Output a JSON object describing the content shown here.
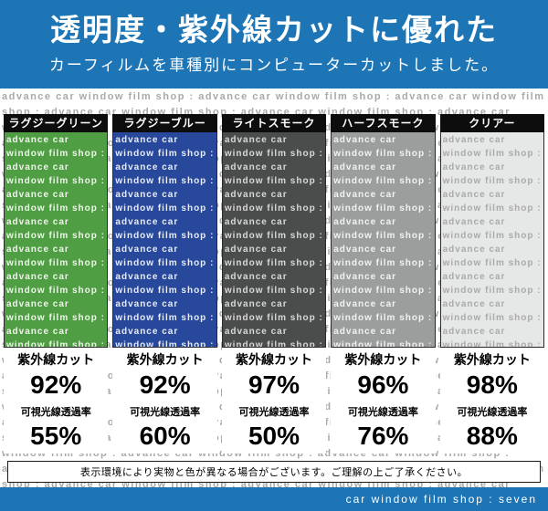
{
  "banner": {
    "title": "透明度・紫外線カットに優れた",
    "subtitle": "カーフィルムを車種別にコンピューターカットしました。"
  },
  "watermark": "advance car window film shop :",
  "labels": {
    "uv": "紫外線カット",
    "vlt": "可視光線透過率"
  },
  "films": [
    {
      "name": "ラグジーグリーン",
      "film_color": "#4f9e43",
      "text_color": "#eef5ea",
      "uv_cut": "92%",
      "vlt": "55%"
    },
    {
      "name": "ラグジーブルー",
      "film_color": "#27489b",
      "text_color": "#e8ecf7",
      "uv_cut": "92%",
      "vlt": "60%"
    },
    {
      "name": "ライトスモーク",
      "film_color": "#4b4d4c",
      "text_color": "#d8d8d8",
      "uv_cut": "97%",
      "vlt": "50%"
    },
    {
      "name": "ハーフスモーク",
      "film_color": "#9c9e9d",
      "text_color": "#f2f2f2",
      "uv_cut": "96%",
      "vlt": "76%"
    },
    {
      "name": "クリアー",
      "film_color": "#e6e8e7",
      "text_color": "#aaaaaa",
      "uv_cut": "98%",
      "vlt": "88%"
    }
  ],
  "notice": "表示環境により実物と色が異なる場合がございます。ご理解の上ご了承ください。",
  "footer": "car window film shop : seven",
  "colors": {
    "banner_blue": "#1e75b5",
    "header_black": "#0d0d0d"
  }
}
